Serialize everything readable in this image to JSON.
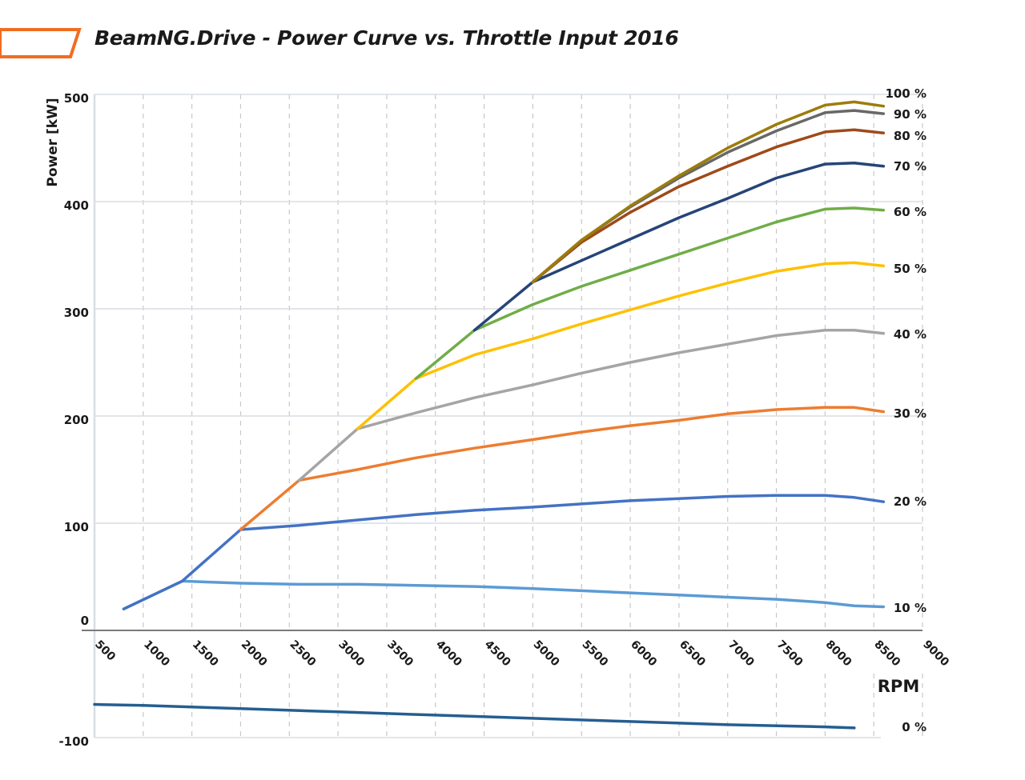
{
  "header": {
    "title": "BeamNG.Drive - Power Curve vs. Throttle Input 2016",
    "accent_color": "#f26d21"
  },
  "chart_data": {
    "type": "line",
    "title": "BeamNG.Drive - Power Curve vs. Throttle Input 2016",
    "xlabel": "RPM",
    "ylabel": "Power [kW]",
    "xlim": [
      500,
      9000
    ],
    "ylim": [
      -100,
      500
    ],
    "x_ticks": [
      "500",
      "1000",
      "1500",
      "2000",
      "2500",
      "3000",
      "3500",
      "4000",
      "4500",
      "5000",
      "5500",
      "6000",
      "6500",
      "7000",
      "7500",
      "8000",
      "8500",
      "9000"
    ],
    "y_ticks": [
      "-100",
      "0",
      "100",
      "200",
      "300",
      "400",
      "500"
    ],
    "grid": {
      "vertical": "dashed",
      "horizontal": "solid"
    },
    "series": [
      {
        "name": "100 %",
        "color": "#9c7c0c",
        "points": [
          [
            5000,
            325
          ],
          [
            5500,
            364
          ],
          [
            6000,
            396
          ],
          [
            6500,
            424
          ],
          [
            7000,
            450
          ],
          [
            7500,
            472
          ],
          [
            8000,
            490
          ],
          [
            8300,
            493
          ],
          [
            8600,
            489
          ]
        ]
      },
      {
        "name": "90 %",
        "color": "#686868",
        "points": [
          [
            5000,
            325
          ],
          [
            5500,
            364
          ],
          [
            6000,
            395
          ],
          [
            6500,
            422
          ],
          [
            7000,
            446
          ],
          [
            7500,
            466
          ],
          [
            8000,
            483
          ],
          [
            8300,
            485
          ],
          [
            8600,
            482
          ]
        ]
      },
      {
        "name": "80 %",
        "color": "#9e4a1a",
        "points": [
          [
            5000,
            325
          ],
          [
            5500,
            362
          ],
          [
            6000,
            390
          ],
          [
            6500,
            414
          ],
          [
            7000,
            433
          ],
          [
            7500,
            451
          ],
          [
            8000,
            465
          ],
          [
            8300,
            467
          ],
          [
            8600,
            464
          ]
        ]
      },
      {
        "name": "70 %",
        "color": "#264478",
        "points": [
          [
            4400,
            280
          ],
          [
            5000,
            325
          ],
          [
            5500,
            345
          ],
          [
            6000,
            365
          ],
          [
            6500,
            385
          ],
          [
            7000,
            403
          ],
          [
            7500,
            422
          ],
          [
            8000,
            435
          ],
          [
            8300,
            436
          ],
          [
            8600,
            433
          ]
        ]
      },
      {
        "name": "60 %",
        "color": "#70ad47",
        "points": [
          [
            3800,
            235
          ],
          [
            4400,
            280
          ],
          [
            5000,
            304
          ],
          [
            5500,
            321
          ],
          [
            6000,
            336
          ],
          [
            6500,
            351
          ],
          [
            7000,
            366
          ],
          [
            7500,
            381
          ],
          [
            8000,
            393
          ],
          [
            8300,
            394
          ],
          [
            8600,
            392
          ]
        ]
      },
      {
        "name": "50 %",
        "color": "#ffc000",
        "points": [
          [
            3200,
            188
          ],
          [
            3800,
            235
          ],
          [
            4400,
            257
          ],
          [
            5000,
            272
          ],
          [
            5500,
            286
          ],
          [
            6000,
            299
          ],
          [
            6500,
            312
          ],
          [
            7000,
            324
          ],
          [
            7500,
            335
          ],
          [
            8000,
            342
          ],
          [
            8300,
            343
          ],
          [
            8600,
            340
          ]
        ]
      },
      {
        "name": "40 %",
        "color": "#a5a5a5",
        "points": [
          [
            2600,
            140
          ],
          [
            3200,
            188
          ],
          [
            3800,
            203
          ],
          [
            4400,
            217
          ],
          [
            5000,
            229
          ],
          [
            5500,
            240
          ],
          [
            6000,
            250
          ],
          [
            6500,
            259
          ],
          [
            7000,
            267
          ],
          [
            7500,
            275
          ],
          [
            8000,
            280
          ],
          [
            8300,
            280
          ],
          [
            8600,
            277
          ]
        ]
      },
      {
        "name": "30 %",
        "color": "#ed7d31",
        "points": [
          [
            2000,
            94
          ],
          [
            2600,
            140
          ],
          [
            3200,
            150
          ],
          [
            3800,
            161
          ],
          [
            4400,
            170
          ],
          [
            5000,
            178
          ],
          [
            5500,
            185
          ],
          [
            6000,
            191
          ],
          [
            6500,
            196
          ],
          [
            7000,
            202
          ],
          [
            7500,
            206
          ],
          [
            8000,
            208
          ],
          [
            8300,
            208
          ],
          [
            8600,
            204
          ]
        ]
      },
      {
        "name": "20 %",
        "color": "#4472c4",
        "points": [
          [
            800,
            20
          ],
          [
            1400,
            46
          ],
          [
            2000,
            94
          ],
          [
            2600,
            98
          ],
          [
            3200,
            103
          ],
          [
            3800,
            108
          ],
          [
            4400,
            112
          ],
          [
            5000,
            115
          ],
          [
            5500,
            118
          ],
          [
            6000,
            121
          ],
          [
            6500,
            123
          ],
          [
            7000,
            125
          ],
          [
            7500,
            126
          ],
          [
            8000,
            126
          ],
          [
            8300,
            124
          ],
          [
            8600,
            120
          ]
        ]
      },
      {
        "name": "10 %",
        "color": "#5b9bd5",
        "points": [
          [
            800,
            20
          ],
          [
            1400,
            46
          ],
          [
            2000,
            44
          ],
          [
            2600,
            43
          ],
          [
            3200,
            43
          ],
          [
            3800,
            42
          ],
          [
            4400,
            41
          ],
          [
            5000,
            39
          ],
          [
            5500,
            37
          ],
          [
            6000,
            35
          ],
          [
            6500,
            33
          ],
          [
            7000,
            31
          ],
          [
            7500,
            29
          ],
          [
            8000,
            26
          ],
          [
            8300,
            23
          ],
          [
            8600,
            22
          ]
        ]
      },
      {
        "name": "0 %",
        "color": "#255e91",
        "points": [
          [
            500,
            -69
          ],
          [
            1000,
            -70
          ],
          [
            2000,
            -73
          ],
          [
            3000,
            -76
          ],
          [
            4000,
            -79
          ],
          [
            5000,
            -82
          ],
          [
            6000,
            -85
          ],
          [
            7000,
            -88
          ],
          [
            8000,
            -90
          ],
          [
            8300,
            -91
          ]
        ]
      }
    ]
  }
}
